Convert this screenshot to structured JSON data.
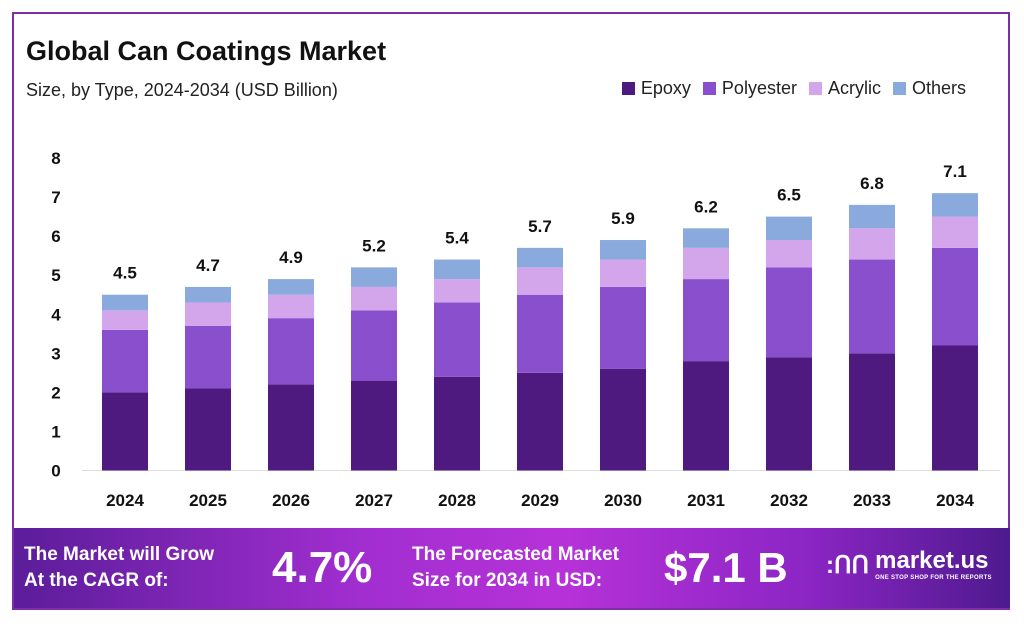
{
  "chart_data": {
    "type": "bar",
    "stacked": true,
    "title": "Global Can Coatings Market",
    "subtitle": "Size, by Type, 2024-2034 (USD Billion)",
    "categories": [
      "2024",
      "2025",
      "2026",
      "2027",
      "2028",
      "2029",
      "2030",
      "2031",
      "2032",
      "2033",
      "2034"
    ],
    "series": [
      {
        "name": "Epoxy",
        "color": "#4e1a80",
        "values": [
          2.0,
          2.1,
          2.2,
          2.3,
          2.4,
          2.5,
          2.6,
          2.8,
          2.9,
          3.0,
          3.2
        ]
      },
      {
        "name": "Polyester",
        "color": "#8a4fcc",
        "values": [
          1.6,
          1.6,
          1.7,
          1.8,
          1.9,
          2.0,
          2.1,
          2.1,
          2.3,
          2.4,
          2.5
        ]
      },
      {
        "name": "Acrylic",
        "color": "#d3a6ec",
        "values": [
          0.5,
          0.6,
          0.6,
          0.6,
          0.6,
          0.7,
          0.7,
          0.8,
          0.7,
          0.8,
          0.8
        ]
      },
      {
        "name": "Others",
        "color": "#8aaade",
        "values": [
          0.4,
          0.4,
          0.4,
          0.5,
          0.5,
          0.5,
          0.5,
          0.5,
          0.6,
          0.6,
          0.6
        ]
      }
    ],
    "totals": [
      "4.5",
      "4.7",
      "4.9",
      "5.2",
      "5.4",
      "5.7",
      "5.9",
      "6.2",
      "6.5",
      "6.8",
      "7.1"
    ],
    "yticks": [
      "0",
      "1",
      "2",
      "3",
      "4",
      "5",
      "6",
      "7",
      "8"
    ],
    "ylim": [
      0,
      8
    ],
    "grid": false,
    "legend": "top-right"
  },
  "banner": {
    "cagr_text_1": "The Market will Grow",
    "cagr_text_2": "At the CAGR of:",
    "cagr_value": "4.7%",
    "forecast_text_1": "The Forecasted Market",
    "forecast_text_2": "Size for 2034 in USD:",
    "forecast_value": "$7.1 B",
    "logo_name": "market.us",
    "logo_tagline": "ONE STOP SHOP FOR THE REPORTS"
  }
}
